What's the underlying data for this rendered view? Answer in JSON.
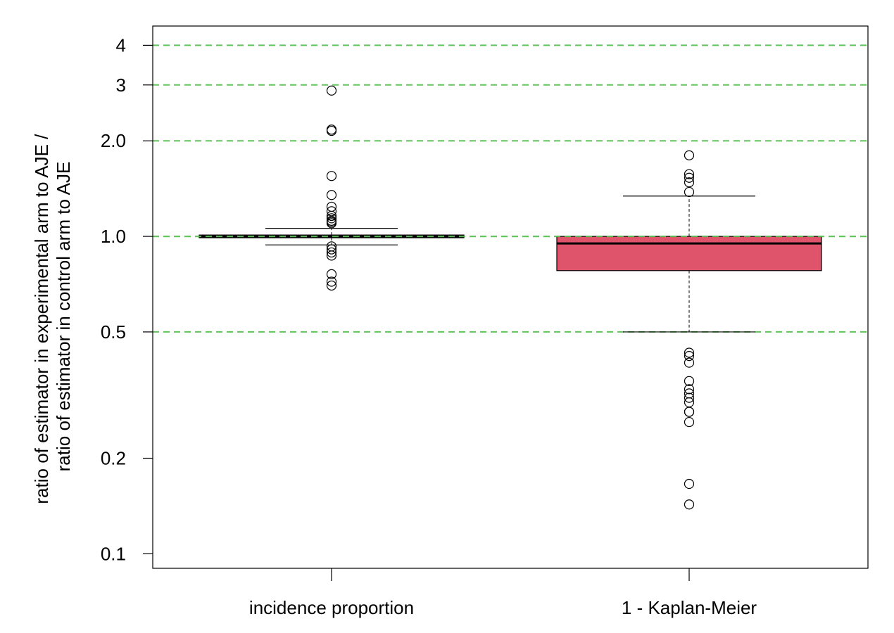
{
  "chart_data": {
    "type": "boxplot",
    "yscale": "log",
    "ylim": [
      0.09,
      4.6
    ],
    "ylabel": [
      "ratio of estimator in experimental arm to AJE /",
      "ratio of estimator in control arm to AJE"
    ],
    "xlabel": "",
    "title": "",
    "y_ticks": [
      {
        "value": 0.1,
        "label": "0.1"
      },
      {
        "value": 0.2,
        "label": "0.2"
      },
      {
        "value": 0.5,
        "label": "0.5"
      },
      {
        "value": 1.0,
        "label": "1.0"
      },
      {
        "value": 2.0,
        "label": "2.0"
      },
      {
        "value": 3,
        "label": "3"
      },
      {
        "value": 4,
        "label": "4"
      }
    ],
    "reference_lines": [
      0.5,
      1.0,
      2.0,
      3,
      4
    ],
    "reference_line_color": "#61c45a",
    "grid": false,
    "categories": [
      "incidence proportion",
      "1 - Kaplan-Meier"
    ],
    "boxes": [
      {
        "category": "incidence proportion",
        "color": "#dccbb8",
        "whisker_low": 0.94,
        "q1": 0.99,
        "median": 1.0,
        "q3": 1.01,
        "whisker_high": 1.06,
        "outliers": [
          2.88,
          2.17,
          2.15,
          1.55,
          1.35,
          1.24,
          1.2,
          1.16,
          1.14,
          1.12,
          1.11,
          1.1,
          0.93,
          0.91,
          0.89,
          0.87,
          0.76,
          0.72,
          0.7
        ]
      },
      {
        "category": "1 - Kaplan-Meier",
        "color": "#df536b",
        "whisker_low": 0.5,
        "q1": 0.78,
        "median": 0.95,
        "q3": 1.0,
        "whisker_high": 1.34,
        "outliers": [
          1.8,
          1.57,
          1.53,
          1.48,
          1.38,
          0.43,
          0.42,
          0.4,
          0.35,
          0.33,
          0.32,
          0.31,
          0.3,
          0.28,
          0.28,
          0.26,
          0.166,
          0.143
        ]
      }
    ]
  }
}
